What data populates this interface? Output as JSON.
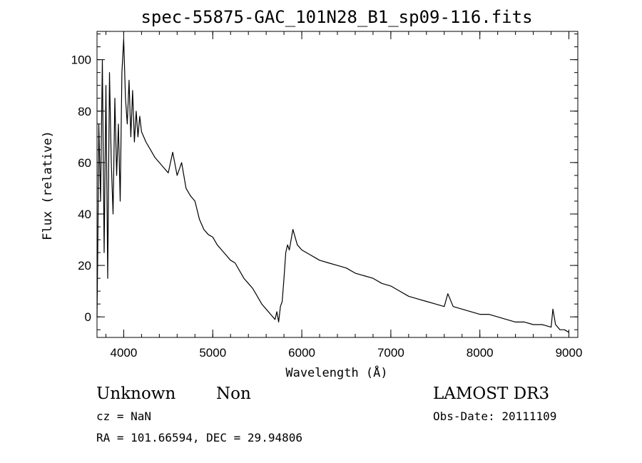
{
  "chart_data": {
    "type": "line",
    "title": "spec-55875-GAC_101N28_B1_sp09-116.fits",
    "xlabel": "Wavelength (Å)",
    "ylabel": "Flux (relative)",
    "xlim": [
      3700,
      9100
    ],
    "ylim": [
      -8,
      111
    ],
    "xticks": [
      4000,
      5000,
      6000,
      7000,
      8000,
      9000
    ],
    "yticks": [
      0,
      20,
      40,
      60,
      80,
      100
    ],
    "x_minor_step": 200,
    "y_minor_step": 5,
    "grid": false,
    "series": [
      {
        "x": [
          3700,
          3710,
          3720,
          3740,
          3760,
          3780,
          3800,
          3820,
          3840,
          3860,
          3880,
          3900,
          3920,
          3940,
          3960,
          3980,
          4000,
          4020,
          4040,
          4060,
          4080,
          4100,
          4120,
          4140,
          4160,
          4180,
          4200,
          4250,
          4300,
          4350,
          4400,
          4450,
          4500,
          4550,
          4600,
          4650,
          4700,
          4750,
          4800,
          4850,
          4900,
          4950,
          5000,
          5050,
          5100,
          5150,
          5200,
          5250,
          5300,
          5350,
          5400,
          5450,
          5500,
          5550,
          5600,
          5650,
          5700,
          5720,
          5740,
          5760,
          5780,
          5800,
          5820,
          5840,
          5860,
          5880,
          5900,
          5950,
          6000,
          6050,
          6100,
          6150,
          6200,
          6300,
          6400,
          6500,
          6600,
          6700,
          6800,
          6900,
          7000,
          7100,
          7200,
          7300,
          7400,
          7500,
          7600,
          7640,
          7700,
          7800,
          7900,
          8000,
          8100,
          8200,
          8300,
          8400,
          8500,
          8600,
          8700,
          8800,
          8820,
          8850,
          8900,
          8950,
          9000
        ],
        "y": [
          0,
          30,
          75,
          45,
          100,
          25,
          90,
          15,
          95,
          60,
          40,
          85,
          55,
          75,
          45,
          95,
          108,
          85,
          75,
          92,
          70,
          88,
          68,
          80,
          70,
          78,
          72,
          68,
          65,
          62,
          60,
          58,
          56,
          64,
          55,
          60,
          50,
          47,
          45,
          38,
          34,
          32,
          31,
          28,
          26,
          24,
          22,
          21,
          18,
          15,
          13,
          11,
          8,
          5,
          3,
          1,
          -1,
          2,
          -2,
          4,
          6,
          15,
          25,
          28,
          26,
          30,
          34,
          28,
          26,
          25,
          24,
          23,
          22,
          21,
          20,
          19,
          17,
          16,
          15,
          13,
          12,
          10,
          8,
          7,
          6,
          5,
          4,
          9,
          4,
          3,
          2,
          1,
          1,
          0,
          -1,
          -2,
          -2,
          -3,
          -3,
          -4,
          3,
          -3,
          -5,
          -5,
          -6
        ]
      }
    ]
  },
  "annotations": {
    "left_line1_a": "Unknown",
    "left_line1_b": "Non",
    "left_line2": "cz = NaN",
    "left_line3": "RA = 101.66594, DEC =  29.94806",
    "right_line1": "LAMOST DR3",
    "right_line2": "Obs-Date: 20111109"
  }
}
